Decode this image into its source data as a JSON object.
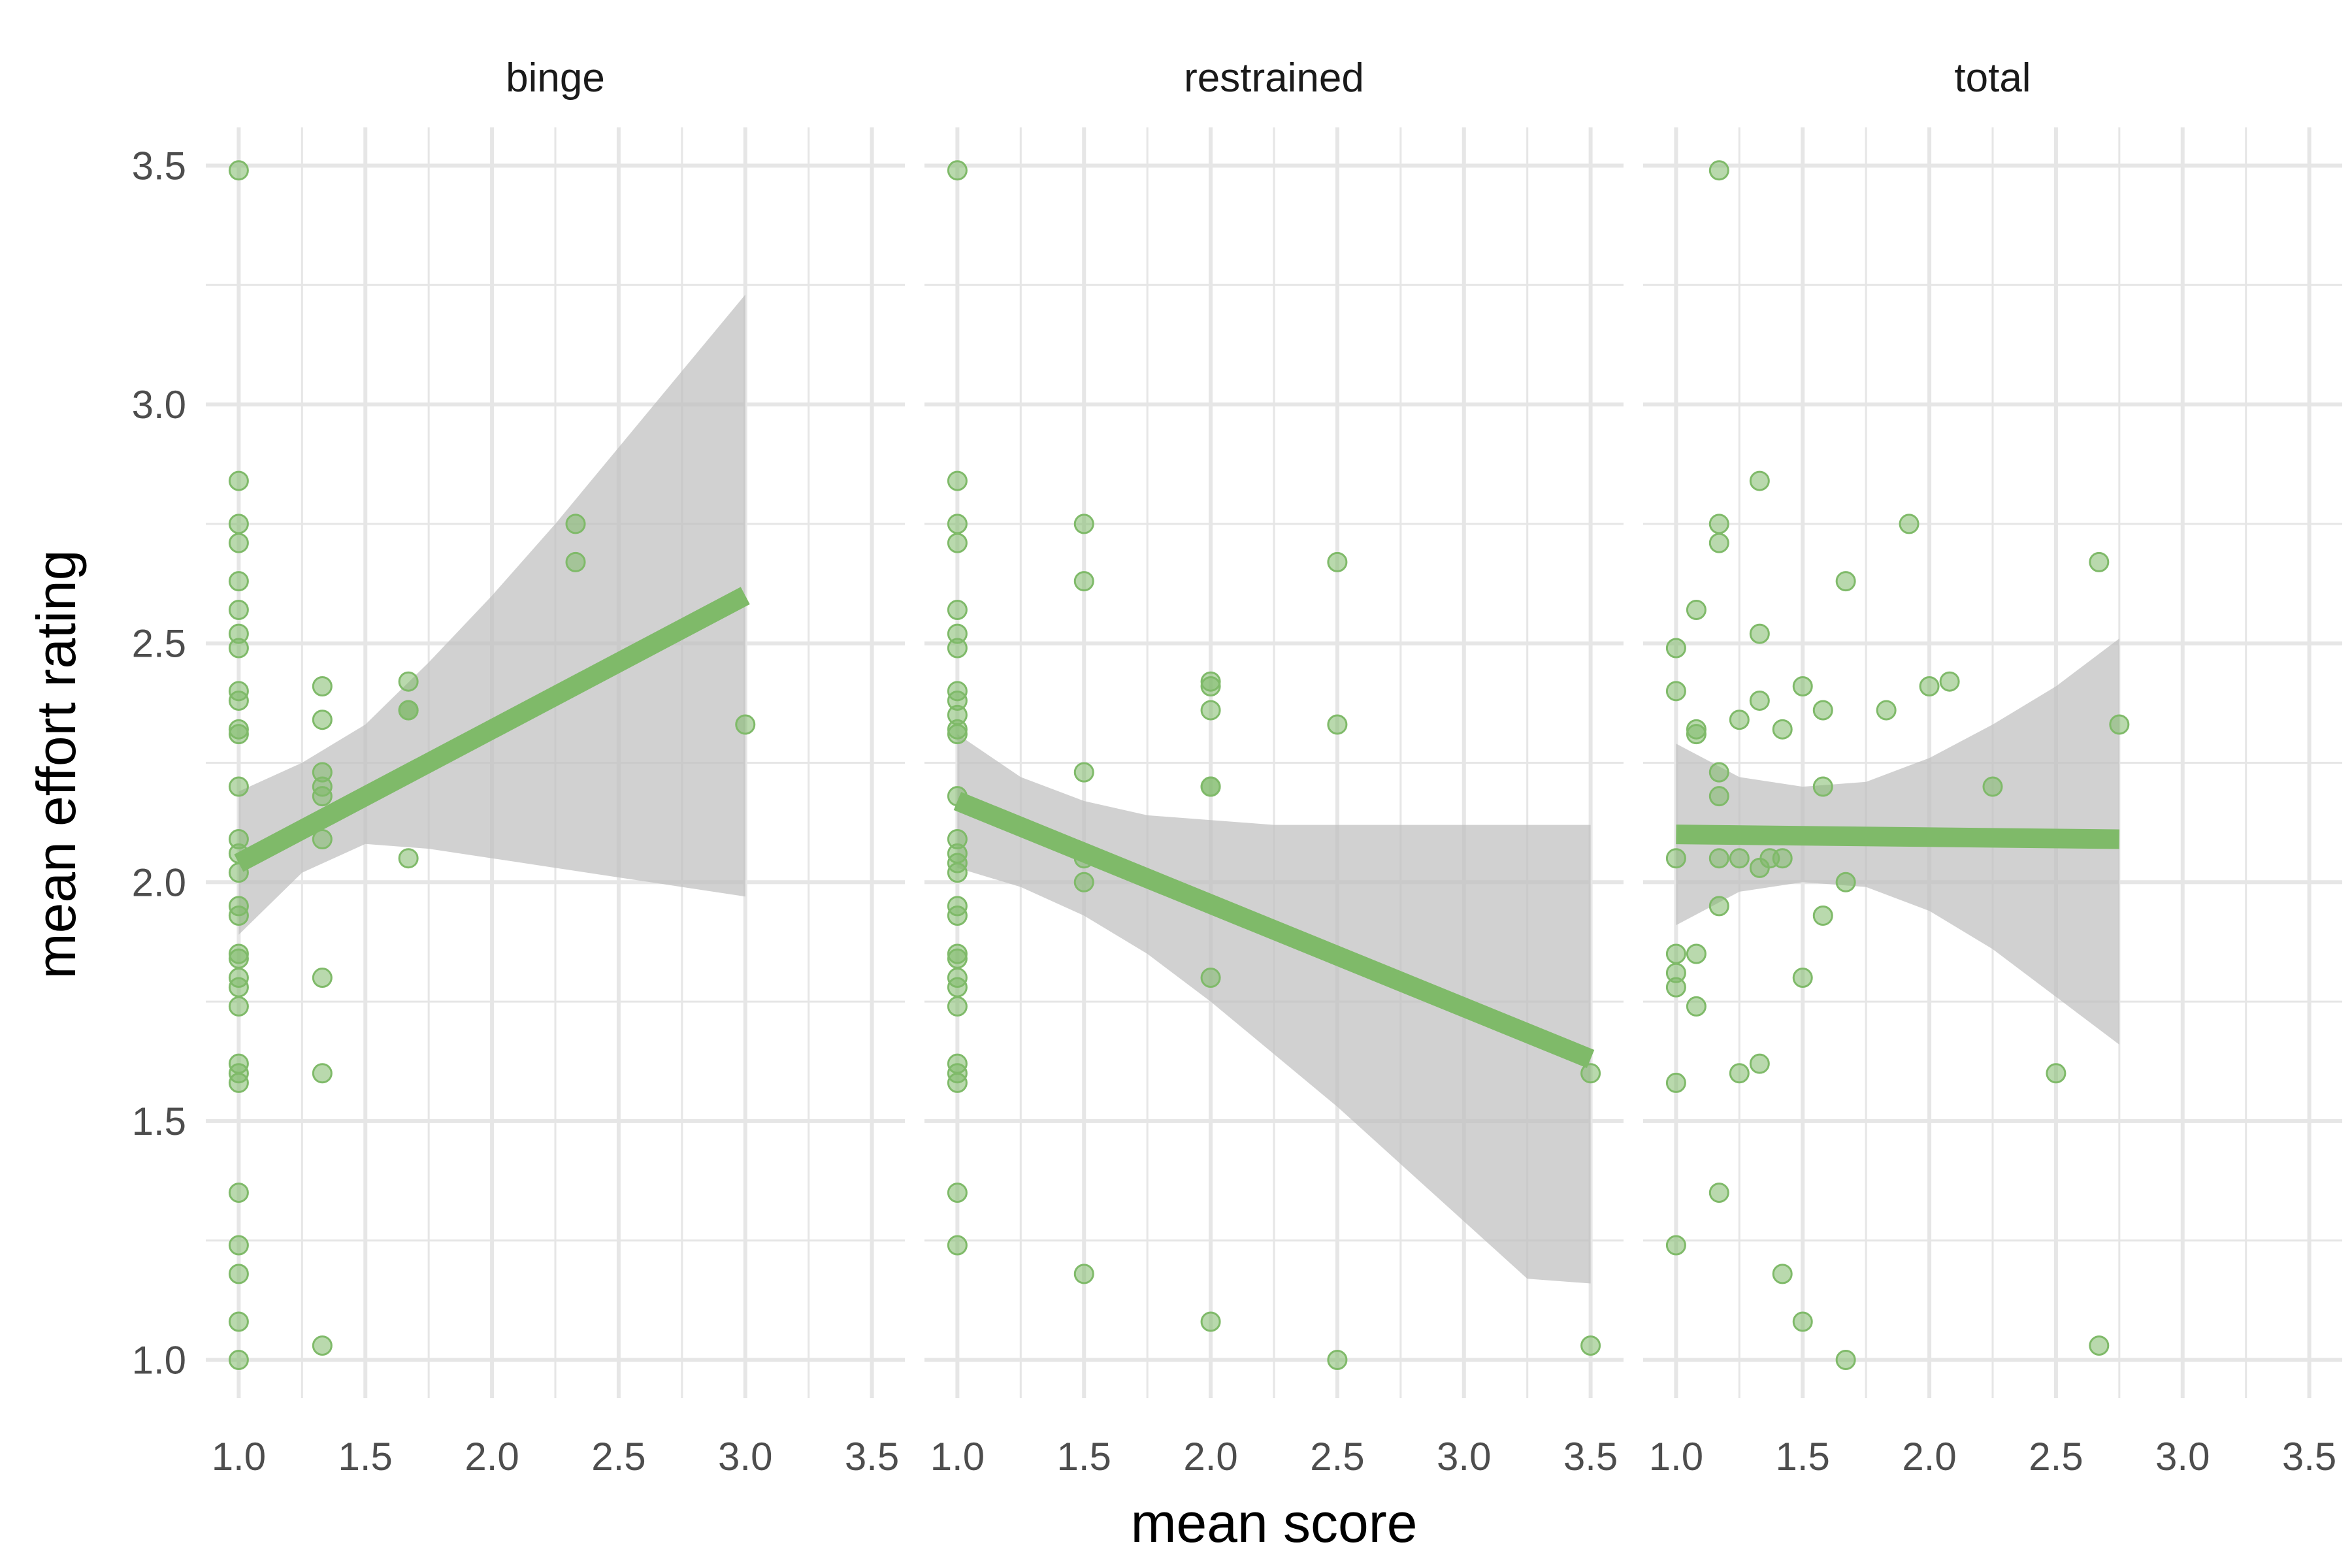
{
  "chart_data": {
    "type": "scatter",
    "xlabel": "mean score",
    "ylabel": "mean effort rating",
    "xlim": [
      0.87,
      3.63
    ],
    "ylim": [
      0.92,
      3.58
    ],
    "x_ticks": [
      1.0,
      1.5,
      2.0,
      2.5,
      3.0,
      3.5
    ],
    "y_ticks": [
      1.0,
      1.5,
      2.0,
      2.5,
      3.0,
      3.5
    ],
    "x_tick_labels": [
      "1.0",
      "1.5",
      "2.0",
      "2.5",
      "3.0",
      "3.5"
    ],
    "y_tick_labels": [
      "1.0",
      "1.5",
      "2.0",
      "2.5",
      "3.0",
      "3.5"
    ],
    "grid": true,
    "colors": {
      "point": "#7fba69",
      "line": "#7fba69",
      "band": "#bdbdbd",
      "grid": "#e6e6e6"
    },
    "panels": [
      {
        "name": "binge",
        "points": [
          [
            1.0,
            3.49
          ],
          [
            1.0,
            2.84
          ],
          [
            1.0,
            2.75
          ],
          [
            1.0,
            2.71
          ],
          [
            1.0,
            2.63
          ],
          [
            1.0,
            2.57
          ],
          [
            1.0,
            2.52
          ],
          [
            1.0,
            2.49
          ],
          [
            1.0,
            2.4
          ],
          [
            1.0,
            2.38
          ],
          [
            1.0,
            2.32
          ],
          [
            1.0,
            2.31
          ],
          [
            1.0,
            2.2
          ],
          [
            1.0,
            2.09
          ],
          [
            1.0,
            2.06
          ],
          [
            1.0,
            2.02
          ],
          [
            1.0,
            1.95
          ],
          [
            1.0,
            1.93
          ],
          [
            1.0,
            1.85
          ],
          [
            1.0,
            1.84
          ],
          [
            1.0,
            1.8
          ],
          [
            1.0,
            1.78
          ],
          [
            1.0,
            1.74
          ],
          [
            1.0,
            1.62
          ],
          [
            1.0,
            1.6
          ],
          [
            1.0,
            1.58
          ],
          [
            1.0,
            1.35
          ],
          [
            1.0,
            1.24
          ],
          [
            1.0,
            1.18
          ],
          [
            1.0,
            1.08
          ],
          [
            1.0,
            1.0
          ],
          [
            1.33,
            2.41
          ],
          [
            1.33,
            2.34
          ],
          [
            1.33,
            2.23
          ],
          [
            1.33,
            2.2
          ],
          [
            1.33,
            2.18
          ],
          [
            1.33,
            2.09
          ],
          [
            1.33,
            1.8
          ],
          [
            1.33,
            1.6
          ],
          [
            1.33,
            1.03
          ],
          [
            1.67,
            2.42
          ],
          [
            1.67,
            2.36
          ],
          [
            1.67,
            2.36
          ],
          [
            1.67,
            2.05
          ],
          [
            2.33,
            2.75
          ],
          [
            2.33,
            2.67
          ],
          [
            3.0,
            2.33
          ]
        ],
        "fit": {
          "x": [
            1.0,
            3.0
          ],
          "y": [
            2.04,
            2.6
          ]
        },
        "band": {
          "x": [
            1.0,
            1.25,
            1.5,
            1.75,
            2.0,
            2.25,
            2.5,
            2.75,
            3.0
          ],
          "lower": [
            1.89,
            2.02,
            2.08,
            2.07,
            2.05,
            2.03,
            2.01,
            1.99,
            1.97
          ],
          "upper": [
            2.19,
            2.25,
            2.33,
            2.46,
            2.6,
            2.75,
            2.91,
            3.07,
            3.23
          ]
        }
      },
      {
        "name": "restrained",
        "points": [
          [
            1.0,
            3.49
          ],
          [
            1.0,
            2.84
          ],
          [
            1.0,
            2.75
          ],
          [
            1.0,
            2.71
          ],
          [
            1.0,
            2.57
          ],
          [
            1.0,
            2.52
          ],
          [
            1.0,
            2.49
          ],
          [
            1.0,
            2.4
          ],
          [
            1.0,
            2.38
          ],
          [
            1.0,
            2.35
          ],
          [
            1.0,
            2.32
          ],
          [
            1.0,
            2.31
          ],
          [
            1.0,
            2.18
          ],
          [
            1.0,
            2.09
          ],
          [
            1.0,
            2.06
          ],
          [
            1.0,
            2.04
          ],
          [
            1.0,
            2.02
          ],
          [
            1.0,
            1.95
          ],
          [
            1.0,
            1.93
          ],
          [
            1.0,
            1.85
          ],
          [
            1.0,
            1.84
          ],
          [
            1.0,
            1.8
          ],
          [
            1.0,
            1.78
          ],
          [
            1.0,
            1.74
          ],
          [
            1.0,
            1.62
          ],
          [
            1.0,
            1.6
          ],
          [
            1.0,
            1.58
          ],
          [
            1.0,
            1.35
          ],
          [
            1.0,
            1.24
          ],
          [
            1.5,
            2.75
          ],
          [
            1.5,
            2.63
          ],
          [
            1.5,
            2.23
          ],
          [
            1.5,
            2.05
          ],
          [
            1.5,
            2.0
          ],
          [
            1.5,
            1.18
          ],
          [
            2.0,
            2.42
          ],
          [
            2.0,
            2.41
          ],
          [
            2.0,
            2.36
          ],
          [
            2.0,
            2.2
          ],
          [
            2.0,
            2.2
          ],
          [
            2.0,
            1.8
          ],
          [
            2.0,
            1.08
          ],
          [
            2.5,
            2.67
          ],
          [
            2.5,
            2.33
          ],
          [
            2.5,
            1.0
          ],
          [
            3.5,
            1.6
          ],
          [
            3.5,
            1.03
          ]
        ],
        "fit": {
          "x": [
            1.0,
            3.5
          ],
          "y": [
            2.17,
            1.63
          ]
        },
        "band": {
          "x": [
            1.0,
            1.25,
            1.5,
            1.75,
            2.0,
            2.25,
            2.5,
            2.75,
            3.0,
            3.25,
            3.5
          ],
          "lower": [
            2.03,
            1.99,
            1.93,
            1.85,
            1.75,
            1.64,
            1.53,
            1.41,
            1.29,
            1.17,
            1.16
          ],
          "upper": [
            2.31,
            2.22,
            2.17,
            2.14,
            2.13,
            2.12,
            2.12,
            2.12,
            2.12,
            2.12,
            2.12
          ]
        }
      },
      {
        "name": "total",
        "points": [
          [
            1.0,
            2.49
          ],
          [
            1.0,
            2.4
          ],
          [
            1.0,
            2.05
          ],
          [
            1.0,
            1.85
          ],
          [
            1.0,
            1.81
          ],
          [
            1.0,
            1.78
          ],
          [
            1.0,
            1.58
          ],
          [
            1.0,
            1.24
          ],
          [
            1.08,
            2.57
          ],
          [
            1.08,
            2.32
          ],
          [
            1.08,
            2.31
          ],
          [
            1.08,
            1.85
          ],
          [
            1.08,
            1.74
          ],
          [
            1.17,
            3.49
          ],
          [
            1.17,
            2.75
          ],
          [
            1.17,
            2.71
          ],
          [
            1.17,
            2.23
          ],
          [
            1.17,
            2.18
          ],
          [
            1.17,
            2.05
          ],
          [
            1.17,
            1.95
          ],
          [
            1.17,
            1.35
          ],
          [
            1.25,
            2.34
          ],
          [
            1.25,
            2.05
          ],
          [
            1.25,
            1.6
          ],
          [
            1.33,
            2.84
          ],
          [
            1.33,
            2.52
          ],
          [
            1.33,
            2.38
          ],
          [
            1.33,
            2.03
          ],
          [
            1.33,
            1.62
          ],
          [
            1.37,
            2.05
          ],
          [
            1.42,
            2.32
          ],
          [
            1.42,
            2.05
          ],
          [
            1.42,
            1.18
          ],
          [
            1.5,
            2.41
          ],
          [
            1.5,
            1.8
          ],
          [
            1.5,
            1.08
          ],
          [
            1.58,
            2.36
          ],
          [
            1.58,
            2.2
          ],
          [
            1.58,
            1.93
          ],
          [
            1.67,
            2.63
          ],
          [
            1.67,
            2.0
          ],
          [
            1.67,
            1.0
          ],
          [
            1.83,
            2.36
          ],
          [
            1.92,
            2.75
          ],
          [
            2.0,
            2.41
          ],
          [
            2.08,
            2.42
          ],
          [
            2.25,
            2.2
          ],
          [
            2.5,
            1.6
          ],
          [
            2.67,
            2.67
          ],
          [
            2.67,
            1.03
          ],
          [
            2.75,
            2.33
          ]
        ],
        "fit": {
          "x": [
            1.0,
            2.75
          ],
          "y": [
            2.1,
            2.09
          ]
        },
        "band": {
          "x": [
            1.0,
            1.25,
            1.5,
            1.75,
            2.0,
            2.25,
            2.5,
            2.75
          ],
          "lower": [
            1.91,
            1.98,
            2.0,
            1.99,
            1.94,
            1.86,
            1.76,
            1.66
          ],
          "upper": [
            2.29,
            2.22,
            2.2,
            2.21,
            2.26,
            2.33,
            2.41,
            2.51
          ]
        }
      }
    ]
  }
}
